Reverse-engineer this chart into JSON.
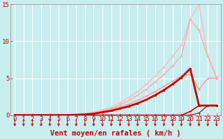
{
  "bg_color": "#c8eef0",
  "grid_color": "#aadddd",
  "xlabel": "Vent moyen/en rafales ( km/h )",
  "xlim": [
    -0.5,
    23.5
  ],
  "ylim": [
    0,
    15
  ],
  "yticks": [
    0,
    5,
    10,
    15
  ],
  "xticks": [
    0,
    1,
    2,
    3,
    4,
    5,
    6,
    7,
    8,
    9,
    10,
    11,
    12,
    13,
    14,
    15,
    16,
    17,
    18,
    19,
    20,
    21,
    22,
    23
  ],
  "lines": [
    {
      "x": [
        0,
        1,
        2,
        3,
        4,
        5,
        6,
        7,
        8,
        9,
        10,
        11,
        12,
        13,
        14,
        15,
        16,
        17,
        18,
        19,
        20,
        21,
        22,
        23
      ],
      "y": [
        0,
        0,
        0,
        0,
        0,
        0,
        0,
        0.1,
        0.2,
        0.4,
        0.7,
        1.1,
        1.7,
        2.4,
        3.2,
        4.2,
        5.3,
        6.5,
        8.0,
        9.5,
        13.0,
        15.0,
        8.0,
        5.2
      ],
      "color": "#ffbbbb",
      "lw": 1.0,
      "marker": "o",
      "ms": 1.8
    },
    {
      "x": [
        0,
        1,
        2,
        3,
        4,
        5,
        6,
        7,
        8,
        9,
        10,
        11,
        12,
        13,
        14,
        15,
        16,
        17,
        18,
        19,
        20,
        21,
        22,
        23
      ],
      "y": [
        0,
        0,
        0,
        0,
        0,
        0,
        0,
        0.1,
        0.2,
        0.3,
        0.6,
        0.9,
        1.4,
        2.0,
        2.7,
        3.5,
        4.5,
        5.5,
        6.7,
        8.0,
        13.0,
        11.5,
        8.0,
        5.0
      ],
      "color": "#ffaaaa",
      "lw": 1.0,
      "marker": "o",
      "ms": 1.8
    },
    {
      "x": [
        0,
        1,
        2,
        3,
        4,
        5,
        6,
        7,
        8,
        9,
        10,
        11,
        12,
        13,
        14,
        15,
        16,
        17,
        18,
        19,
        20,
        21,
        22,
        23
      ],
      "y": [
        0,
        0,
        0,
        0,
        0,
        0,
        0.05,
        0.1,
        0.2,
        0.3,
        0.5,
        0.8,
        1.1,
        1.5,
        2.0,
        2.6,
        3.2,
        3.9,
        4.6,
        5.3,
        5.5,
        3.5,
        5.0,
        5.0
      ],
      "color": "#ff9999",
      "lw": 1.0,
      "marker": "o",
      "ms": 1.8
    },
    {
      "x": [
        0,
        1,
        2,
        3,
        4,
        5,
        6,
        7,
        8,
        9,
        10,
        11,
        12,
        13,
        14,
        15,
        16,
        17,
        18,
        19,
        20,
        21,
        22,
        23
      ],
      "y": [
        0,
        0,
        0,
        0,
        0,
        0,
        0,
        0.05,
        0.1,
        0.2,
        0.4,
        0.6,
        0.9,
        1.2,
        1.6,
        2.1,
        2.7,
        3.4,
        4.2,
        5.1,
        6.3,
        1.3,
        1.3,
        1.3
      ],
      "color": "#cc0000",
      "lw": 2.0,
      "marker": "o",
      "ms": 2.2
    },
    {
      "x": [
        0,
        1,
        2,
        3,
        4,
        5,
        6,
        7,
        8,
        9,
        10,
        11,
        12,
        13,
        14,
        15,
        16,
        17,
        18,
        19,
        20,
        21,
        22,
        23
      ],
      "y": [
        0,
        0,
        0,
        0,
        0,
        0,
        0,
        0,
        0,
        0,
        0,
        0,
        0,
        0,
        0,
        0,
        0,
        0,
        0,
        0,
        0.5,
        1.3,
        1.3,
        1.3
      ],
      "color": "#cc0000",
      "lw": 1.2,
      "marker": "o",
      "ms": 1.8
    },
    {
      "x": [
        0,
        1,
        2,
        3,
        4,
        5,
        6,
        7,
        8,
        9,
        10,
        11,
        12,
        13,
        14,
        15,
        16,
        17,
        18,
        19,
        20,
        21,
        22,
        23
      ],
      "y": [
        0,
        0,
        0,
        0,
        0,
        0,
        0,
        0,
        0,
        0,
        0,
        0,
        0,
        0,
        0,
        0,
        0,
        0,
        0,
        0,
        0,
        0.3,
        1.3,
        1.3
      ],
      "color": "#990000",
      "lw": 0.8,
      "marker": "o",
      "ms": 1.5
    }
  ],
  "arrow_color": "#cc0000",
  "xlabel_color": "#cc0000",
  "tick_color": "#cc0000",
  "xlabel_fontsize": 7.5,
  "tick_fontsize": 6.5
}
